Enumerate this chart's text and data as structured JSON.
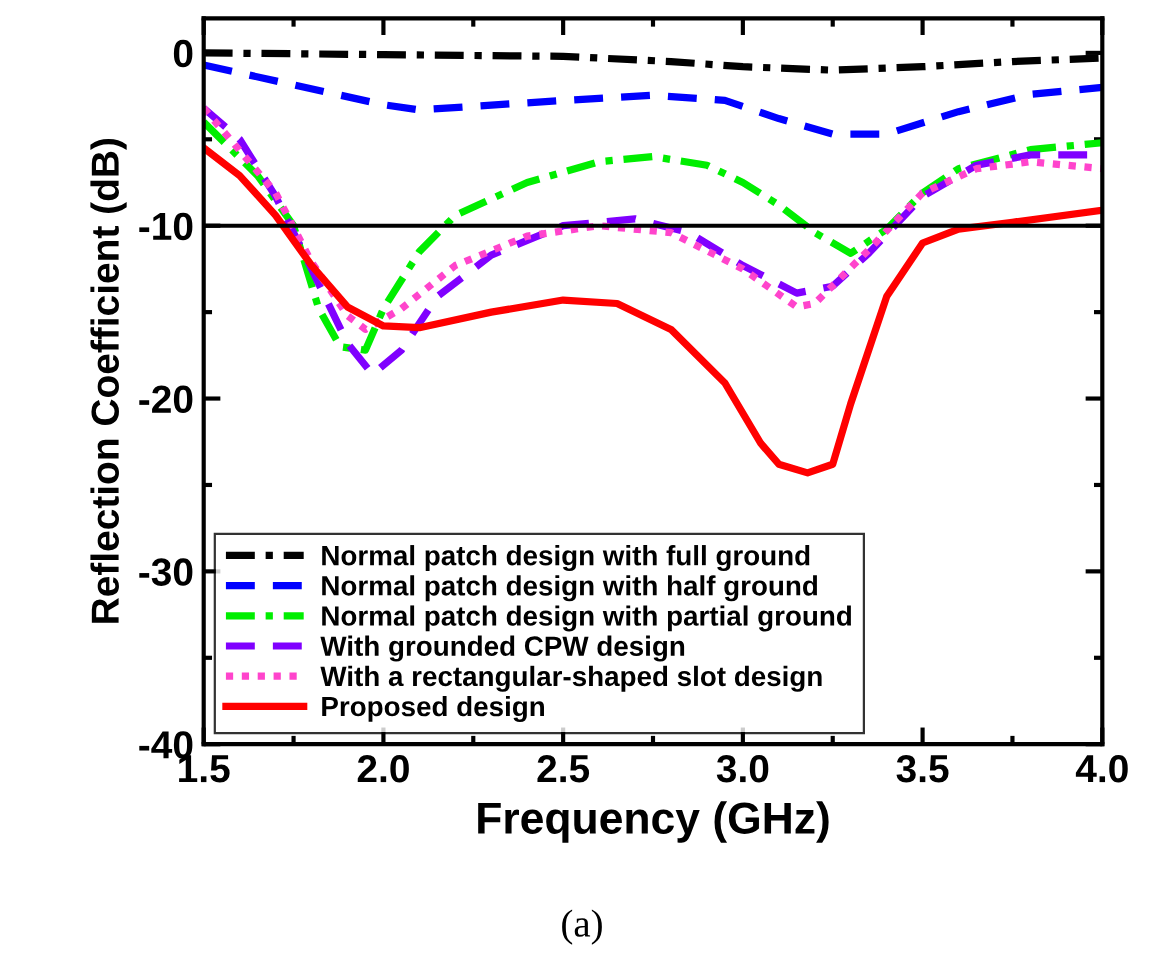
{
  "chart_data": {
    "type": "line",
    "xlabel": "Frequency (GHz)",
    "ylabel": "Reflection Coefficient (dB)",
    "annotations": [
      "(a)"
    ],
    "xlim": [
      1.5,
      4.0
    ],
    "ylim": [
      -40,
      2
    ],
    "xticks": [
      {
        "value": 1.5,
        "label": "1.5"
      },
      {
        "value": 1.75,
        "label": null
      },
      {
        "value": 2.0,
        "label": "2.0"
      },
      {
        "value": 2.25,
        "label": null
      },
      {
        "value": 2.5,
        "label": "2.5"
      },
      {
        "value": 2.75,
        "label": null
      },
      {
        "value": 3.0,
        "label": "3.0"
      },
      {
        "value": 3.25,
        "label": null
      },
      {
        "value": 3.5,
        "label": "3.5"
      },
      {
        "value": 3.75,
        "label": null
      },
      {
        "value": 4.0,
        "label": "4.0"
      }
    ],
    "yticks": [
      -40,
      {
        "value": -35,
        "label": null
      },
      -30,
      {
        "value": -25,
        "label": null
      },
      -20,
      {
        "value": -15,
        "label": null
      },
      -10,
      {
        "value": -5,
        "label": null
      },
      0
    ],
    "ref_lines": [
      {
        "axis": "y",
        "value": -10,
        "color": "#000000",
        "line_style": "solid"
      }
    ],
    "legend": "bottom left",
    "grid": false,
    "series": [
      {
        "name": "Normal patch design with full ground",
        "color": "#000000",
        "line_style": "dashdot",
        "x": [
          1.5,
          2.0,
          2.5,
          2.8,
          3.0,
          3.25,
          3.5,
          3.75,
          4.0
        ],
        "values": [
          0,
          -0.1,
          -0.2,
          -0.5,
          -0.8,
          -1.0,
          -0.8,
          -0.5,
          -0.3
        ]
      },
      {
        "name": "Normal patch design with half ground",
        "color": "#0000ff",
        "line_style": "dashed",
        "x": [
          1.5,
          2.0,
          2.1,
          2.5,
          2.75,
          2.95,
          3.1,
          3.25,
          3.4,
          3.6,
          3.8,
          4.0
        ],
        "values": [
          -0.7,
          -3.0,
          -3.3,
          -2.75,
          -2.45,
          -2.75,
          -3.8,
          -4.7,
          -4.7,
          -3.4,
          -2.4,
          -2.0
        ]
      },
      {
        "name": "Normal patch design with partial ground",
        "color": "#00ee00",
        "line_style": "dashdot",
        "x": [
          1.5,
          1.65,
          1.75,
          1.82,
          1.88,
          1.95,
          2.0,
          2.1,
          2.2,
          2.4,
          2.6,
          2.75,
          2.9,
          3.0,
          3.1,
          3.2,
          3.3,
          3.4,
          3.5,
          3.6,
          3.8,
          4.0
        ],
        "values": [
          -4.0,
          -7.1,
          -10.0,
          -14.8,
          -17.0,
          -17.2,
          -14.8,
          -11.5,
          -9.4,
          -7.5,
          -6.3,
          -6.0,
          -6.5,
          -7.5,
          -8.8,
          -10.4,
          -11.6,
          -10.2,
          -8.1,
          -6.7,
          -5.6,
          -5.2
        ]
      },
      {
        "name": "With grounded CPW design",
        "color": "#8000ff",
        "line_style": "dashed",
        "x": [
          1.5,
          1.6,
          1.7,
          1.8,
          1.9,
          1.97,
          2.05,
          2.15,
          2.3,
          2.5,
          2.7,
          2.85,
          3.0,
          3.15,
          3.25,
          3.35,
          3.5,
          3.65,
          3.8,
          4.0
        ],
        "values": [
          -3.2,
          -5.0,
          -8.3,
          -12.5,
          -16.8,
          -18.6,
          -17.2,
          -14.1,
          -11.7,
          -10.0,
          -9.6,
          -10.4,
          -12.3,
          -13.9,
          -13.5,
          -11.6,
          -8.3,
          -6.5,
          -5.9,
          -5.9
        ]
      },
      {
        "name": "With a rectangular-shaped slot design",
        "color": "#ff44cc",
        "line_style": "dotted",
        "x": [
          1.5,
          1.7,
          1.8,
          1.9,
          1.95,
          2.05,
          2.2,
          2.4,
          2.6,
          2.8,
          3.0,
          3.15,
          3.2,
          3.35,
          3.5,
          3.65,
          3.8,
          4.0
        ],
        "values": [
          -3.2,
          -8.1,
          -12.1,
          -15.2,
          -16.0,
          -14.8,
          -12.3,
          -10.6,
          -10.0,
          -10.4,
          -12.5,
          -14.7,
          -14.5,
          -11.4,
          -8.1,
          -6.7,
          -6.3,
          -6.7
        ]
      },
      {
        "name": "Proposed design",
        "color": "#ff0000",
        "line_style": "solid",
        "x": [
          1.5,
          1.6,
          1.7,
          1.8,
          1.9,
          2.0,
          2.1,
          2.3,
          2.5,
          2.65,
          2.8,
          2.95,
          3.05,
          3.1,
          3.18,
          3.25,
          3.3,
          3.4,
          3.5,
          3.6,
          3.75,
          4.0
        ],
        "values": [
          -5.5,
          -7.1,
          -9.4,
          -12.3,
          -14.7,
          -15.8,
          -15.9,
          -15.0,
          -14.3,
          -14.5,
          -16.0,
          -19.1,
          -22.6,
          -23.8,
          -24.3,
          -23.8,
          -20.3,
          -14.1,
          -11.0,
          -10.2,
          -9.8,
          -9.1
        ]
      }
    ]
  }
}
